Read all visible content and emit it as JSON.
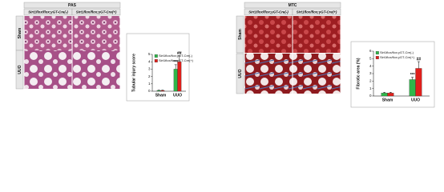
{
  "panels": [
    {
      "stain": "PAS",
      "columns": [
        "Sirt1flox/flox;γGT-Cre(-)",
        "Sirt1flox/flox;γGT-Cre(+)"
      ],
      "rows": [
        "Sham",
        "UUO"
      ]
    },
    {
      "stain": "MTC",
      "columns": [
        "Sirt1flox/flox;γGT-Cre(-)",
        "Sirt1flox/flox;γGT-Cre(+)"
      ],
      "rows": [
        "Sham",
        "UUO"
      ]
    }
  ],
  "chart_data": [
    {
      "type": "bar",
      "y_label": "Tubular injury score",
      "categories": [
        "Sham",
        "UUO"
      ],
      "ylim": [
        0,
        5
      ],
      "yticks": [
        0,
        1,
        2,
        3,
        4,
        5
      ],
      "series": [
        {
          "name": "Sirt1flox/flox;γGT-Cre(-)",
          "color": "#2eb84a",
          "values": [
            0.1,
            3.0
          ],
          "errors": [
            0.05,
            0.6
          ],
          "annotations": [
            null,
            "***"
          ]
        },
        {
          "name": "Sirt1flox/flox;γGT-Cre(+)",
          "color": "#e0201c",
          "values": [
            0.1,
            4.0
          ],
          "errors": [
            0.05,
            0.8
          ],
          "annotations": [
            null,
            "##"
          ]
        }
      ]
    },
    {
      "type": "bar",
      "y_label": "Fibrotic area (%)",
      "categories": [
        "Sham",
        "UUO"
      ],
      "ylim": [
        0,
        6
      ],
      "yticks": [
        0,
        1,
        2,
        3,
        4,
        5,
        6
      ],
      "series": [
        {
          "name": "Sirt1flox/flox;γGT-Cre(-)",
          "color": "#2eb84a",
          "values": [
            0.4,
            2.2
          ],
          "errors": [
            0.1,
            0.3
          ],
          "annotations": [
            null,
            "***"
          ]
        },
        {
          "name": "Sirt1flox/flox;γGT-Cre(+)",
          "color": "#e0201c",
          "values": [
            0.4,
            3.7
          ],
          "errors": [
            0.1,
            0.9
          ],
          "annotations": [
            null,
            "##"
          ]
        }
      ]
    }
  ]
}
